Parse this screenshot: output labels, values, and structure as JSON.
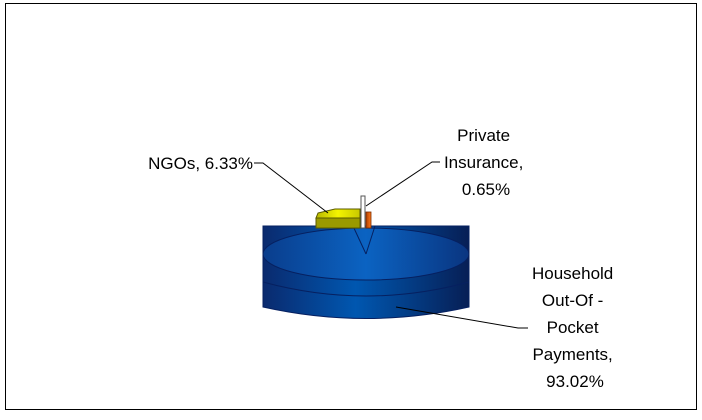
{
  "chart_data": {
    "type": "pie",
    "style": "3d-exploded",
    "title": "",
    "slices": [
      {
        "label_lines": [
          "Household",
          "Out-Of -",
          "Pocket",
          "Payments,",
          "93.02%"
        ],
        "value": 93.02,
        "color": "#0052A3"
      },
      {
        "label_lines": [
          "NGOs, 6.33%"
        ],
        "value": 6.33,
        "color": "#E8E800"
      },
      {
        "label_lines": [
          "Private",
          "Insurance,",
          "0.65%"
        ],
        "value": 0.65,
        "color": "#E06000"
      }
    ],
    "legend": "none"
  }
}
